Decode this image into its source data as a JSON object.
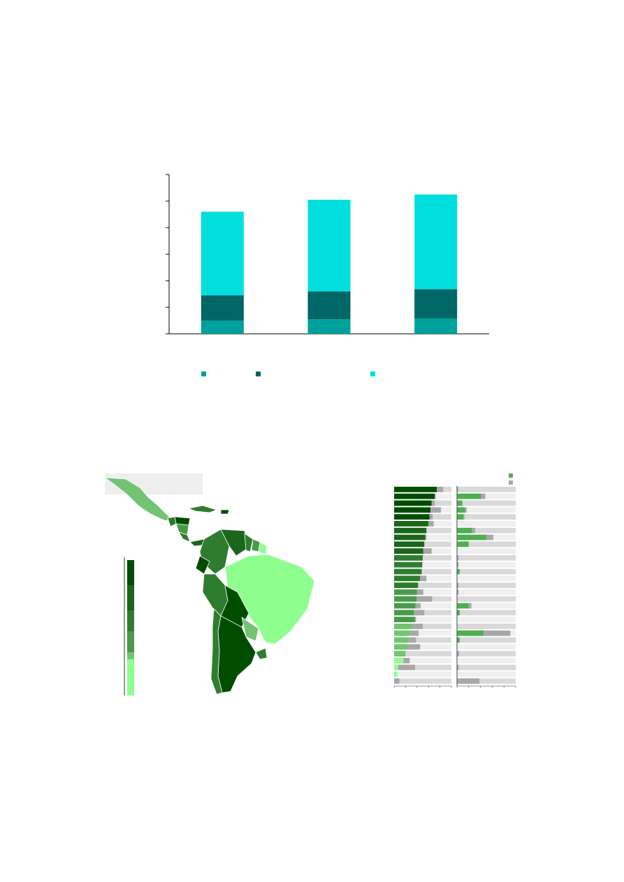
{
  "chart_data": [
    {
      "type": "bar",
      "stacked": true,
      "title": "",
      "xlabel": "",
      "ylabel": "",
      "categories": [
        "",
        "",
        ""
      ],
      "ylim": [
        0,
        6
      ],
      "y_ticks": [
        0,
        1,
        2,
        3,
        4,
        5,
        6
      ],
      "series": [
        {
          "values": [
            0.5,
            0.55,
            0.58
          ],
          "color": "#00a19c"
        },
        {
          "values": [
            0.95,
            1.05,
            1.1
          ],
          "color": "#006666"
        },
        {
          "values": [
            3.15,
            3.45,
            3.57
          ],
          "color": "#00dede"
        }
      ],
      "legend_position": "bottom"
    },
    {
      "type": "map",
      "title": "",
      "legend_scale": "vertical",
      "colors": [
        "#004d00",
        "#1a661a",
        "#2e7d2e",
        "#4a9a4a",
        "#72c472",
        "#8eff8e"
      ],
      "regions": [
        {
          "region": "mexico",
          "color": "#72c472"
        },
        {
          "region": "guatemala",
          "color": "#2e7d2e"
        },
        {
          "region": "honduras",
          "color": "#004d00"
        },
        {
          "region": "nicaragua",
          "color": "#4a9a4a"
        },
        {
          "region": "costa-rica",
          "color": "#2e7d2e"
        },
        {
          "region": "panama",
          "color": "#1a661a"
        },
        {
          "region": "cuba",
          "color": "#2e7d2e"
        },
        {
          "region": "dominican-republic",
          "color": "#004d00"
        },
        {
          "region": "colombia",
          "color": "#2e7d2e"
        },
        {
          "region": "venezuela",
          "color": "#1a661a"
        },
        {
          "region": "guyana",
          "color": "#2e7d2e"
        },
        {
          "region": "suriname",
          "color": "#4a9a4a"
        },
        {
          "region": "french-guiana",
          "color": "#8eff8e"
        },
        {
          "region": "ecuador",
          "color": "#004d00"
        },
        {
          "region": "peru",
          "color": "#2e7d2e"
        },
        {
          "region": "brazil",
          "color": "#8eff8e"
        },
        {
          "region": "bolivia",
          "color": "#004d00"
        },
        {
          "region": "paraguay",
          "color": "#72c472"
        },
        {
          "region": "chile",
          "color": "#2e7d2e"
        },
        {
          "region": "argentina",
          "color": "#004d00"
        },
        {
          "region": "uruguay",
          "color": "#2e7d2e"
        }
      ]
    },
    {
      "type": "bar",
      "orientation": "horizontal",
      "title": "",
      "panels": [
        {
          "series": [
            {
              "values": [
                0.82,
                0.78,
                0.72,
                0.7,
                0.68,
                0.66,
                0.62,
                0.6,
                0.58,
                0.56,
                0.55,
                0.54,
                0.53,
                0.5,
                0.46,
                0.44,
                0.43,
                0.41,
                0.38,
                0.4,
                0.35,
                0.31,
                0.28,
                0.26,
                0.22,
                0.18,
                0.08,
                0.06,
                0.0
              ],
              "color_by_rank": true
            },
            {
              "values": [
                0.12,
                0.02,
                0.06,
                0.2,
                0.06,
                0.1,
                0.0,
                0.02,
                0.0,
                0.16,
                0.0,
                0.0,
                0.0,
                0.12,
                0.0,
                0.12,
                0.3,
                0.1,
                0.2,
                0.02,
                0.2,
                0.16,
                0.14,
                0.24,
                0.0,
                0.12,
                0.32,
                0.0,
                0.1
              ],
              "color": "#a8a8a8"
            }
          ],
          "xlim": [
            0,
            1.1
          ]
        },
        {
          "series": [
            {
              "values": [
                0.0,
                0.45,
                0.1,
                0.15,
                0.12,
                0.0,
                0.28,
                0.55,
                0.22,
                0.0,
                0.0,
                0.0,
                0.05,
                0.0,
                0.0,
                0.0,
                0.0,
                0.22,
                0.05,
                0.0,
                0.0,
                0.5,
                0.05,
                0.0,
                0.0,
                0.0,
                0.0,
                0.0,
                0.0
              ],
              "color": "#4caf50"
            },
            {
              "values": [
                0.02,
                0.08,
                0.0,
                0.03,
                0.02,
                0.0,
                0.06,
                0.13,
                0.0,
                0.0,
                0.03,
                0.03,
                0.0,
                0.0,
                0.03,
                0.03,
                0.0,
                0.05,
                0.0,
                0.0,
                0.0,
                0.5,
                0.0,
                0.0,
                0.04,
                0.0,
                0.03,
                0.0,
                0.42
              ],
              "color": "#a8a8a8"
            }
          ],
          "xlim": [
            0,
            1.1
          ]
        }
      ]
    }
  ]
}
